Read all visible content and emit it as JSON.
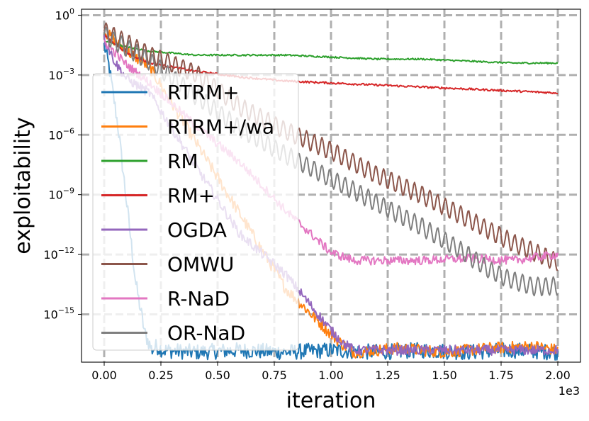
{
  "chart_data": {
    "type": "line",
    "xlabel": "iteration",
    "ylabel": "exploitability",
    "x_offset_label": "1e3",
    "x_ticks": [
      "0.00",
      "0.25",
      "0.50",
      "0.75",
      "1.00",
      "1.25",
      "1.50",
      "1.75",
      "2.00"
    ],
    "x_tick_values": [
      0,
      250,
      500,
      750,
      1000,
      1250,
      1500,
      1750,
      2000
    ],
    "y_ticks": [
      {
        "base": "10",
        "exp": "0"
      },
      {
        "base": "10",
        "exp": "−3"
      },
      {
        "base": "10",
        "exp": "−6"
      },
      {
        "base": "10",
        "exp": "−9"
      },
      {
        "base": "10",
        "exp": "−12"
      },
      {
        "base": "10",
        "exp": "−15"
      }
    ],
    "y_tick_exponents": [
      0,
      -3,
      -6,
      -9,
      -12,
      -15
    ],
    "xlim": [
      -100,
      2100
    ],
    "ylim_log10": [
      -17.4,
      0.3
    ],
    "y_scale": "log",
    "grid": true,
    "legend_position": "left",
    "series": [
      {
        "name": "RTRM+",
        "color": "#1f77b4",
        "x": [
          0,
          20,
          60,
          100,
          140,
          180,
          200,
          210,
          230,
          260,
          400,
          600,
          800,
          1000,
          1200,
          1400,
          1600,
          1800,
          2000
        ],
        "y": [
          -1.5,
          -2.5,
          -5.5,
          -9.5,
          -13.5,
          -16.0,
          -16.5,
          -16.8,
          -16.6,
          -16.8,
          -16.9,
          -16.8,
          -16.9,
          -16.8,
          -16.9,
          -16.8,
          -16.9,
          -16.8,
          -16.9
        ],
        "noise": 0.4,
        "period": 0
      },
      {
        "name": "RTRM+/wa",
        "color": "#ff7f0e",
        "x": [
          0,
          100,
          200,
          400,
          600,
          800,
          1000,
          1050,
          1100,
          1300,
          1500,
          1700,
          1900,
          2000
        ],
        "y": [
          -0.8,
          -1.8,
          -2.6,
          -6.3,
          -10.0,
          -13.7,
          -16.0,
          -16.5,
          -16.9,
          -16.7,
          -16.9,
          -16.7,
          -16.6,
          -16.8
        ],
        "noise": 0.3,
        "period": 0
      },
      {
        "name": "RM",
        "color": "#2ca02c",
        "x": [
          0,
          100,
          200,
          400,
          600,
          800,
          1000,
          1200,
          1400,
          1600,
          1800,
          2000
        ],
        "y": [
          -1.3,
          -1.6,
          -1.8,
          -2.0,
          -2.0,
          -2.0,
          -2.1,
          -2.2,
          -2.2,
          -2.3,
          -2.4,
          -2.4
        ],
        "noise": 0.04,
        "period": 0
      },
      {
        "name": "RM+",
        "color": "#d62728",
        "x": [
          0,
          100,
          200,
          400,
          600,
          800,
          1000,
          1200,
          1400,
          1600,
          1800,
          2000
        ],
        "y": [
          -1.0,
          -1.9,
          -2.4,
          -2.8,
          -3.1,
          -3.3,
          -3.4,
          -3.5,
          -3.6,
          -3.7,
          -3.8,
          -3.9
        ],
        "noise": 0.05,
        "period": 0
      },
      {
        "name": "OGDA",
        "color": "#9467bd",
        "x": [
          0,
          50,
          100,
          200,
          400,
          600,
          800,
          1000,
          1050,
          1100,
          1300,
          1500,
          1700,
          1900,
          2000
        ],
        "y": [
          -1.2,
          -2.4,
          -3.2,
          -3.9,
          -7.5,
          -11.0,
          -13.0,
          -15.8,
          -16.4,
          -16.8,
          -16.8,
          -16.8,
          -16.8,
          -16.8,
          -16.8
        ],
        "noise": 0.25,
        "period": 0
      },
      {
        "name": "OMWU",
        "color": "#8c564b",
        "x": [
          0,
          200,
          400,
          600,
          800,
          1000,
          1200,
          1400,
          1600,
          1800,
          2000
        ],
        "y": [
          -0.8,
          -2.0,
          -2.9,
          -4.6,
          -5.8,
          -6.8,
          -8.0,
          -9.0,
          -10.2,
          -11.4,
          -12.4
        ],
        "noise": 0.06,
        "period": 34
      },
      {
        "name": "R-NaD",
        "color": "#e377c2",
        "x": [
          0,
          100,
          200,
          400,
          600,
          800,
          1000,
          1100,
          1200,
          1400,
          1600,
          1800,
          2000
        ],
        "y": [
          -1.3,
          -2.5,
          -3.4,
          -5.5,
          -7.4,
          -9.8,
          -11.9,
          -12.3,
          -12.3,
          -12.3,
          -12.2,
          -12.3,
          -12.0
        ],
        "noise": 0.22,
        "period": 0
      },
      {
        "name": "OR-NaD",
        "color": "#7f7f7f",
        "x": [
          0,
          200,
          400,
          600,
          800,
          1000,
          1200,
          1400,
          1600,
          1700,
          1800,
          1890,
          2000
        ],
        "y": [
          -1.0,
          -2.3,
          -4.0,
          -5.7,
          -7.0,
          -8.2,
          -9.4,
          -10.6,
          -12.0,
          -12.8,
          -13.3,
          -13.6,
          -13.6
        ],
        "noise": 0.05,
        "period": 34
      }
    ]
  }
}
